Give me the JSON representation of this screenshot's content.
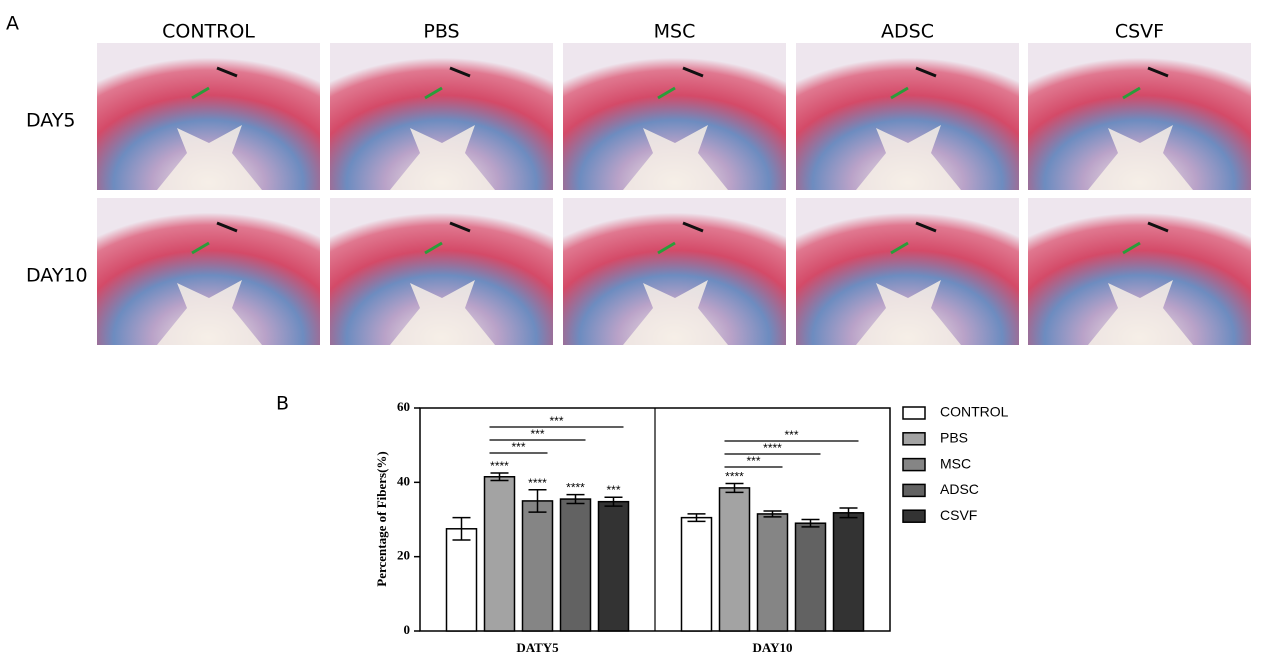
{
  "panel_a": {
    "label": "A",
    "columns": [
      "CONTROL",
      "PBS",
      "MSC",
      "ADSC",
      "CSVF"
    ],
    "rows": [
      "DAY5",
      "DAY10"
    ]
  },
  "chart_data": {
    "type": "bar",
    "panel_label": "B",
    "y_label": "Percentage of Fibers(%)",
    "categories": [
      "DATY5",
      "DAY10"
    ],
    "series": [
      {
        "name": "CONTROL",
        "color": "#ffffff",
        "values": [
          27.5,
          30.5
        ],
        "errors": [
          3,
          1
        ],
        "significance": [
          null,
          null
        ]
      },
      {
        "name": "PBS",
        "color": "#a3a3a3",
        "values": [
          41.5,
          38.5
        ],
        "errors": [
          1,
          1.2
        ],
        "significance": [
          "****",
          "****"
        ]
      },
      {
        "name": "MSC",
        "color": "#858585",
        "values": [
          35,
          31.5
        ],
        "errors": [
          3,
          0.8
        ],
        "significance": [
          "****",
          null
        ]
      },
      {
        "name": "ADSC",
        "color": "#626262",
        "values": [
          35.5,
          29
        ],
        "errors": [
          1.2,
          1
        ],
        "significance": [
          "****",
          null
        ]
      },
      {
        "name": "CSVF",
        "color": "#333333",
        "values": [
          34.8,
          31.8
        ],
        "errors": [
          1.2,
          1.3
        ],
        "significance": [
          "***",
          null
        ]
      }
    ],
    "comparisons": [
      {
        "category": "DATY5",
        "from": "PBS",
        "to": "MSC",
        "label": "***"
      },
      {
        "category": "DATY5",
        "from": "PBS",
        "to": "ADSC",
        "label": "***"
      },
      {
        "category": "DATY5",
        "from": "PBS",
        "to": "CSVF",
        "label": "***"
      },
      {
        "category": "DAY10",
        "from": "PBS",
        "to": "MSC",
        "label": "***"
      },
      {
        "category": "DAY10",
        "from": "PBS",
        "to": "ADSC",
        "label": "****"
      },
      {
        "category": "DAY10",
        "from": "PBS",
        "to": "CSVF",
        "label": "***"
      }
    ],
    "ylim": [
      0,
      60
    ],
    "yticks": [
      0,
      20,
      40,
      60
    ],
    "legend": "right"
  }
}
